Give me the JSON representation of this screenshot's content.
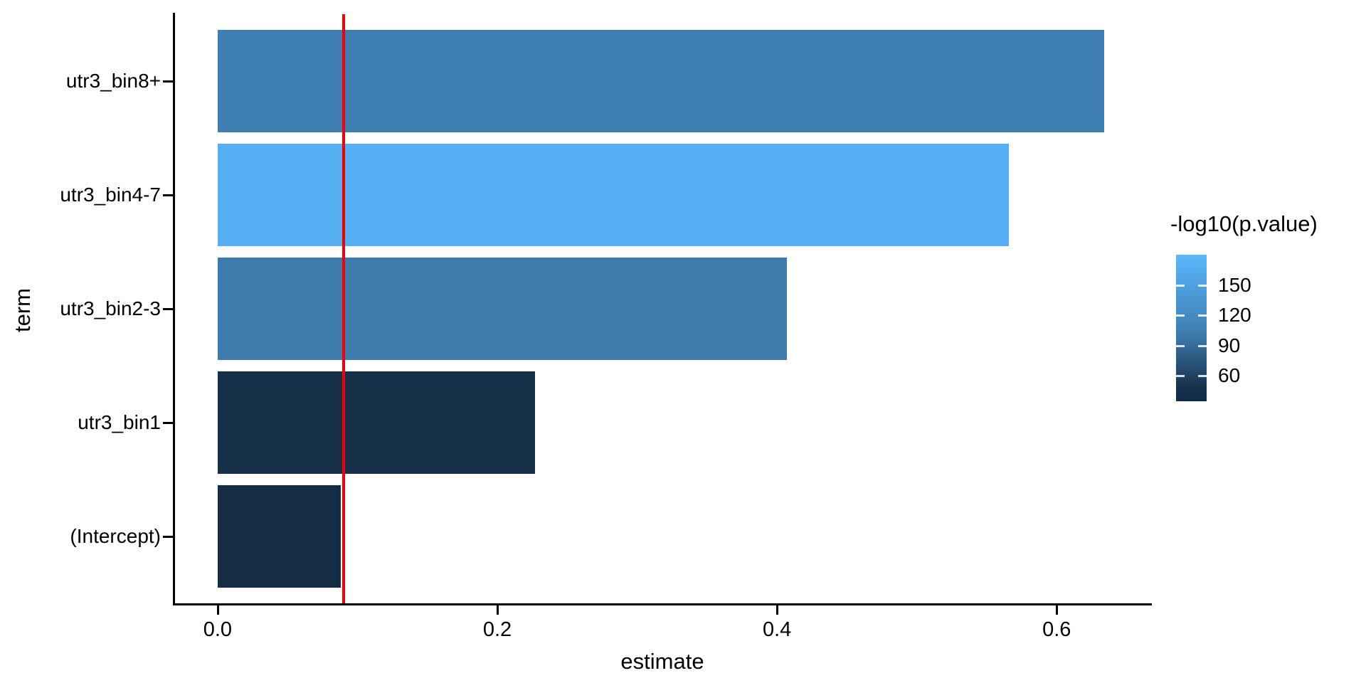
{
  "chart_data": {
    "type": "bar",
    "orientation": "horizontal",
    "xlabel": "estimate",
    "ylabel": "term",
    "categories": [
      "utr3_bin8+",
      "utr3_bin4-7",
      "utr3_bin2-3",
      "utr3_bin1",
      "(Intercept)"
    ],
    "values": [
      0.634,
      0.566,
      0.407,
      0.227,
      0.088
    ],
    "bar_colors": [
      "#3f7eb1",
      "#56aef3",
      "#3e7cae",
      "#17304a",
      "#152c45"
    ],
    "fill_metric": "-log10(p.value)",
    "fill_values_approx": [
      103,
      168,
      101,
      48,
      42
    ],
    "x_ticks": [
      0.0,
      0.2,
      0.4,
      0.6
    ],
    "x_tick_labels": [
      "0.0",
      "0.2",
      "0.4",
      "0.6"
    ],
    "xlim": [
      -0.032,
      0.667
    ],
    "grid": false,
    "background": "#ffffff",
    "vline": {
      "x": 0.09,
      "color": "#f10000"
    },
    "legend": {
      "title": "-log10(p.value)",
      "position": "right",
      "tick_values": [
        150,
        120,
        90,
        60
      ],
      "tick_labels": [
        "150",
        "120",
        "90",
        "60"
      ],
      "scale_top_value": 180,
      "scale_bottom_value": 35,
      "gradient_top_color": "#60b7f9",
      "gradient_bottom_color": "#10294a"
    }
  }
}
